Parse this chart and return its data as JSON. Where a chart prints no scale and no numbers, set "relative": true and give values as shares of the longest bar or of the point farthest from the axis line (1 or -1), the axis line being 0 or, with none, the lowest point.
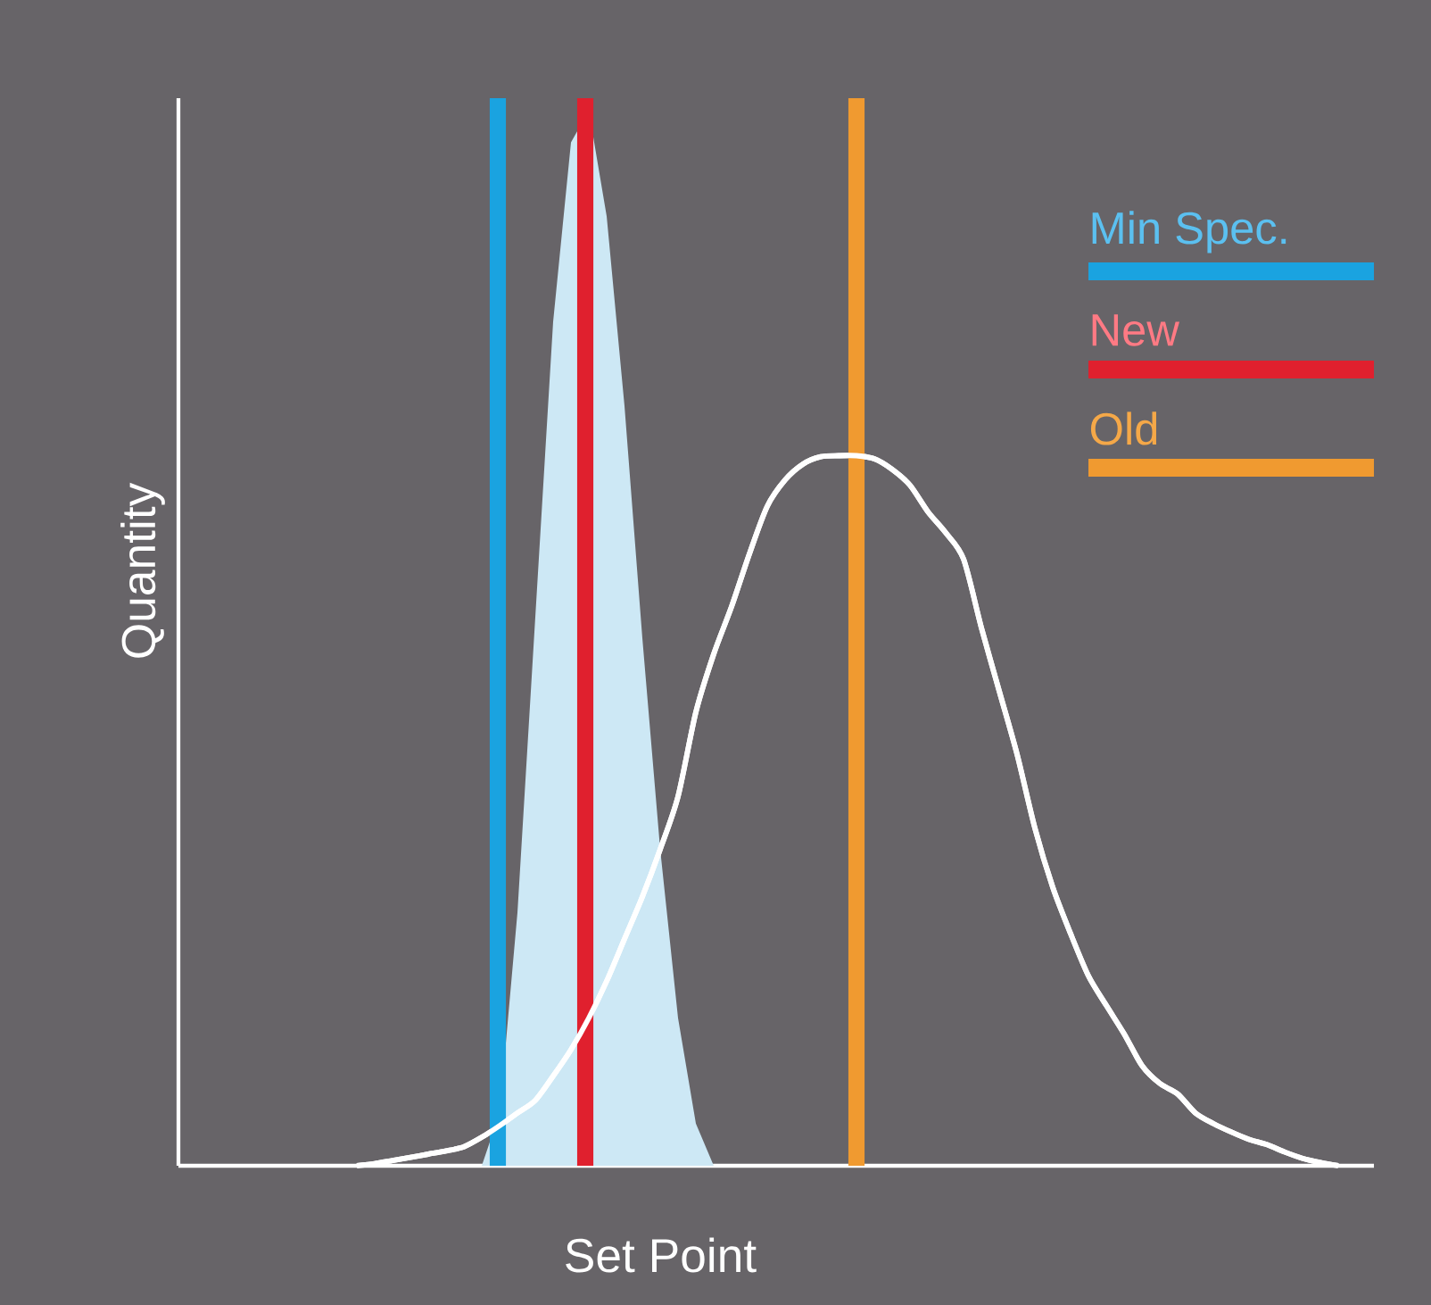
{
  "chart_data": {
    "type": "area",
    "relative": true,
    "xlabel": "Set Point",
    "ylabel": "Quantity",
    "annotations": [
      "Min Spec.",
      "New",
      "Old"
    ],
    "categories": [
      null,
      null,
      null,
      null,
      null,
      null,
      null,
      null,
      null,
      null,
      null,
      null,
      null,
      null,
      null,
      null,
      null,
      null,
      null,
      null,
      null,
      null,
      null,
      null,
      null,
      null,
      null,
      null,
      null,
      null,
      null,
      null,
      null,
      null,
      null,
      null,
      null,
      null,
      null,
      null,
      null,
      null,
      null,
      null,
      null,
      null,
      null,
      null,
      null,
      null,
      null,
      null,
      null,
      null,
      null,
      null,
      null,
      null,
      null,
      null,
      null,
      null,
      null,
      null,
      null,
      null,
      null,
      null
    ],
    "series": [
      {
        "color": "#cde8f5",
        "values": [
          null,
          null,
          null,
          null,
          null,
          null,
          null,
          null,
          null,
          null,
          null,
          null,
          null,
          null,
          null,
          null,
          null,
          0,
          0.05,
          0.24,
          0.52,
          0.8,
          0.97,
          1,
          0.9,
          0.72,
          0.5,
          0.3,
          0.14,
          0.04,
          0,
          null,
          null,
          null,
          null,
          null,
          null,
          null,
          null,
          null,
          null,
          null,
          null,
          null,
          null,
          null,
          null,
          null,
          null,
          null,
          null,
          null,
          null,
          null,
          null,
          null,
          null,
          null,
          null,
          null,
          null,
          null,
          null,
          null,
          null,
          null,
          null,
          null
        ]
      },
      {
        "type": "line",
        "color": "#ffffff",
        "values": [
          null,
          null,
          null,
          null,
          null,
          null,
          null,
          null,
          null,
          null,
          0,
          0.002,
          0.005,
          0.008,
          0.011,
          0.014,
          0.018,
          0.027,
          0.038,
          0.05,
          0.062,
          0.085,
          0.11,
          0.14,
          0.175,
          0.215,
          0.255,
          0.3,
          0.35,
          0.43,
          0.485,
          0.53,
          0.58,
          0.625,
          0.65,
          0.665,
          0.672,
          0.673,
          0.673,
          0.67,
          0.66,
          0.645,
          0.62,
          0.6,
          0.575,
          0.51,
          0.45,
          0.39,
          0.32,
          0.264,
          0.22,
          0.18,
          0.152,
          0.125,
          0.095,
          0.078,
          0.068,
          0.05,
          0.04,
          0.032,
          0.025,
          0.02,
          0.013,
          0.007,
          0.003,
          0,
          null,
          null
        ]
      }
    ]
  }
}
